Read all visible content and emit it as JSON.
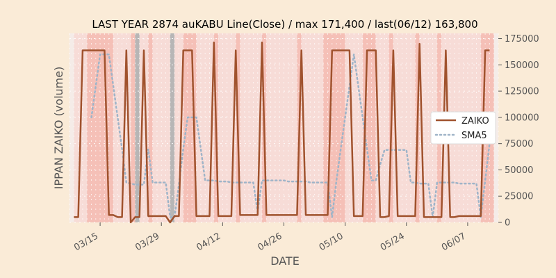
{
  "chart_data": {
    "type": "line",
    "title": "LAST YEAR 2874 auKABU Line(Close) / max 171,400 / last(06/12) 163,800",
    "xlabel": "DATE",
    "ylabel": "IPPAN ZAIKO (volume)",
    "ylim": [
      0,
      180000
    ],
    "yticks": [
      0,
      25000,
      50000,
      75000,
      100000,
      125000,
      150000,
      175000
    ],
    "ytick_labels": [
      "0",
      "25000",
      "50000",
      "75000",
      "100000",
      "125000",
      "150000",
      "175000"
    ],
    "xlim": [
      "2024-03-08",
      "2024-06-14"
    ],
    "xticks": [
      "2024-03-15",
      "2024-03-29",
      "2024-04-12",
      "2024-04-26",
      "2024-05-10",
      "2024-05-24",
      "2024-06-07"
    ],
    "xtick_labels": [
      "03/15",
      "03/29",
      "04/12",
      "04/26",
      "05/10",
      "05/24",
      "06/07"
    ],
    "grid": true,
    "legend_position": "right",
    "colors": {
      "zaiko": "#a0522d",
      "sma5": "#9fb4c8",
      "band_light": "#f7d9d4",
      "band_strong": "#f4b8ae",
      "band_gray": "#b0b0b0",
      "plot_bg": "#f5ece8"
    },
    "series": [
      {
        "name": "ZAIKO",
        "x": [
          "2024-03-09",
          "2024-03-10",
          "2024-03-11",
          "2024-03-12",
          "2024-03-13",
          "2024-03-14",
          "2024-03-15",
          "2024-03-16",
          "2024-03-17",
          "2024-03-18",
          "2024-03-19",
          "2024-03-20",
          "2024-03-21",
          "2024-03-22",
          "2024-03-23",
          "2024-03-24",
          "2024-03-25",
          "2024-03-26",
          "2024-03-27",
          "2024-03-28",
          "2024-03-29",
          "2024-03-30",
          "2024-03-31",
          "2024-04-01",
          "2024-04-02",
          "2024-04-03",
          "2024-04-04",
          "2024-04-05",
          "2024-04-06",
          "2024-04-07",
          "2024-04-08",
          "2024-04-09",
          "2024-04-10",
          "2024-04-11",
          "2024-04-12",
          "2024-04-13",
          "2024-04-14",
          "2024-04-15",
          "2024-04-16",
          "2024-04-17",
          "2024-04-18",
          "2024-04-19",
          "2024-04-20",
          "2024-04-21",
          "2024-04-22",
          "2024-04-23",
          "2024-04-24",
          "2024-04-25",
          "2024-04-26",
          "2024-04-27",
          "2024-04-28",
          "2024-04-29",
          "2024-04-30",
          "2024-05-01",
          "2024-05-02",
          "2024-05-03",
          "2024-05-04",
          "2024-05-05",
          "2024-05-06",
          "2024-05-07",
          "2024-05-08",
          "2024-05-09",
          "2024-05-10",
          "2024-05-11",
          "2024-05-12",
          "2024-05-13",
          "2024-05-14",
          "2024-05-15",
          "2024-05-16",
          "2024-05-17",
          "2024-05-18",
          "2024-05-19",
          "2024-05-20",
          "2024-05-21",
          "2024-05-22",
          "2024-05-23",
          "2024-05-24",
          "2024-05-25",
          "2024-05-26",
          "2024-05-27",
          "2024-05-28",
          "2024-05-29",
          "2024-05-30",
          "2024-05-31",
          "2024-06-01",
          "2024-06-02",
          "2024-06-03",
          "2024-06-04",
          "2024-06-05",
          "2024-06-06",
          "2024-06-07",
          "2024-06-08",
          "2024-06-09",
          "2024-06-10",
          "2024-06-11",
          "2024-06-12"
        ],
        "values": [
          5000,
          5000,
          163800,
          163800,
          163800,
          163800,
          163800,
          163800,
          7000,
          7000,
          5000,
          5000,
          163800,
          0,
          5000,
          5000,
          163800,
          6000,
          6000,
          6000,
          6000,
          6000,
          0,
          6000,
          6000,
          163800,
          163800,
          163800,
          6000,
          6000,
          6000,
          6000,
          171400,
          6000,
          6000,
          6000,
          6000,
          163800,
          7000,
          7000,
          7000,
          7000,
          7000,
          171400,
          7000,
          7000,
          7000,
          7000,
          7000,
          7000,
          7000,
          7000,
          163800,
          7000,
          7000,
          7000,
          7000,
          7000,
          7000,
          163800,
          163800,
          163800,
          163800,
          163800,
          6000,
          6000,
          6000,
          163800,
          163800,
          163800,
          5000,
          5000,
          6000,
          163800,
          6000,
          6000,
          6000,
          6000,
          6000,
          170000,
          5000,
          5000,
          5000,
          5000,
          5000,
          163800,
          5000,
          5000,
          6000,
          6000,
          6000,
          6000,
          6000,
          6000,
          163800,
          163800
        ]
      },
      {
        "name": "SMA5",
        "x": [
          "2024-03-13",
          "2024-03-14",
          "2024-03-15",
          "2024-03-16",
          "2024-03-17",
          "2024-03-18",
          "2024-03-19",
          "2024-03-20",
          "2024-03-21",
          "2024-03-22",
          "2024-03-23",
          "2024-03-24",
          "2024-03-25",
          "2024-03-26",
          "2024-03-27",
          "2024-03-28",
          "2024-03-29",
          "2024-03-30",
          "2024-03-31",
          "2024-04-01",
          "2024-04-02",
          "2024-04-03",
          "2024-04-04",
          "2024-04-05",
          "2024-04-06",
          "2024-04-07",
          "2024-04-08",
          "2024-04-09",
          "2024-04-10",
          "2024-04-11",
          "2024-04-12",
          "2024-04-13",
          "2024-04-14",
          "2024-04-15",
          "2024-04-16",
          "2024-04-17",
          "2024-04-18",
          "2024-04-19",
          "2024-04-20",
          "2024-04-21",
          "2024-04-22",
          "2024-04-23",
          "2024-04-24",
          "2024-04-25",
          "2024-04-26",
          "2024-04-27",
          "2024-04-28",
          "2024-04-29",
          "2024-04-30",
          "2024-05-01",
          "2024-05-02",
          "2024-05-03",
          "2024-05-04",
          "2024-05-05",
          "2024-05-06",
          "2024-05-07",
          "2024-05-08",
          "2024-05-09",
          "2024-05-10",
          "2024-05-11",
          "2024-05-12",
          "2024-05-13",
          "2024-05-14",
          "2024-05-15",
          "2024-05-16",
          "2024-05-17",
          "2024-05-18",
          "2024-05-19",
          "2024-05-20",
          "2024-05-21",
          "2024-05-22",
          "2024-05-23",
          "2024-05-24",
          "2024-05-25",
          "2024-05-26",
          "2024-05-27",
          "2024-05-28",
          "2024-05-29",
          "2024-05-30",
          "2024-05-31",
          "2024-06-01",
          "2024-06-02",
          "2024-06-03",
          "2024-06-04",
          "2024-06-05",
          "2024-06-06",
          "2024-06-07",
          "2024-06-08",
          "2024-06-09",
          "2024-06-10",
          "2024-06-11",
          "2024-06-12"
        ],
        "values": [
          100000,
          130000,
          160000,
          160000,
          160000,
          130000,
          100000,
          70000,
          38000,
          37000,
          36000,
          36000,
          36000,
          70000,
          38000,
          38000,
          38000,
          38000,
          5000,
          5000,
          36000,
          70000,
          100000,
          100000,
          100000,
          70000,
          40000,
          40000,
          40000,
          39000,
          39000,
          39000,
          38000,
          38000,
          38000,
          38000,
          38000,
          38000,
          10000,
          40000,
          40000,
          40000,
          40000,
          40000,
          40000,
          39000,
          39000,
          39000,
          39000,
          39000,
          38000,
          38000,
          38000,
          38000,
          38000,
          5000,
          40000,
          70000,
          100000,
          130000,
          160000,
          130000,
          100000,
          70000,
          40000,
          40000,
          55000,
          69000,
          69000,
          69000,
          69000,
          69000,
          69000,
          38000,
          38000,
          37000,
          37000,
          37000,
          5000,
          38000,
          38000,
          38000,
          38000,
          38000,
          37000,
          37000,
          37000,
          37000,
          37000,
          5000,
          40000,
          75000
        ]
      }
    ],
    "bands": [
      {
        "start": "2024-03-09",
        "end": "2024-03-12",
        "kind": "light"
      },
      {
        "start": "2024-03-12",
        "end": "2024-03-18",
        "kind": "strong"
      },
      {
        "start": "2024-03-18",
        "end": "2024-03-22",
        "kind": "light"
      },
      {
        "start": "2024-03-22",
        "end": "2024-03-23",
        "kind": "strong"
      },
      {
        "start": "2024-03-23",
        "end": "2024-03-24",
        "kind": "gray"
      },
      {
        "start": "2024-03-24",
        "end": "2024-03-26",
        "kind": "light"
      },
      {
        "start": "2024-03-26",
        "end": "2024-03-27",
        "kind": "strong"
      },
      {
        "start": "2024-03-27",
        "end": "2024-03-31",
        "kind": "light"
      },
      {
        "start": "2024-03-31",
        "end": "2024-04-01",
        "kind": "gray"
      },
      {
        "start": "2024-04-01",
        "end": "2024-04-03",
        "kind": "light"
      },
      {
        "start": "2024-04-03",
        "end": "2024-04-06",
        "kind": "strong"
      },
      {
        "start": "2024-04-06",
        "end": "2024-04-10",
        "kind": "light"
      },
      {
        "start": "2024-04-10",
        "end": "2024-04-11",
        "kind": "strong"
      },
      {
        "start": "2024-04-11",
        "end": "2024-04-15",
        "kind": "light"
      },
      {
        "start": "2024-04-15",
        "end": "2024-04-16",
        "kind": "strong"
      },
      {
        "start": "2024-04-16",
        "end": "2024-04-21",
        "kind": "light"
      },
      {
        "start": "2024-04-21",
        "end": "2024-04-22",
        "kind": "strong"
      },
      {
        "start": "2024-04-22",
        "end": "2024-04-29",
        "kind": "light"
      },
      {
        "start": "2024-04-29",
        "end": "2024-04-30",
        "kind": "strong"
      },
      {
        "start": "2024-04-30",
        "end": "2024-05-05",
        "kind": "light"
      },
      {
        "start": "2024-05-05",
        "end": "2024-05-10",
        "kind": "strong"
      },
      {
        "start": "2024-05-10",
        "end": "2024-05-14",
        "kind": "light"
      },
      {
        "start": "2024-05-14",
        "end": "2024-05-17",
        "kind": "strong"
      },
      {
        "start": "2024-05-17",
        "end": "2024-05-20",
        "kind": "light"
      },
      {
        "start": "2024-05-20",
        "end": "2024-05-21",
        "kind": "strong"
      },
      {
        "start": "2024-05-21",
        "end": "2024-05-26",
        "kind": "light"
      },
      {
        "start": "2024-05-26",
        "end": "2024-05-27",
        "kind": "strong"
      },
      {
        "start": "2024-05-27",
        "end": "2024-05-31",
        "kind": "light"
      },
      {
        "start": "2024-05-31",
        "end": "2024-06-01",
        "kind": "strong"
      },
      {
        "start": "2024-06-01",
        "end": "2024-06-10",
        "kind": "light"
      },
      {
        "start": "2024-06-10",
        "end": "2024-06-13",
        "kind": "strong"
      }
    ]
  }
}
